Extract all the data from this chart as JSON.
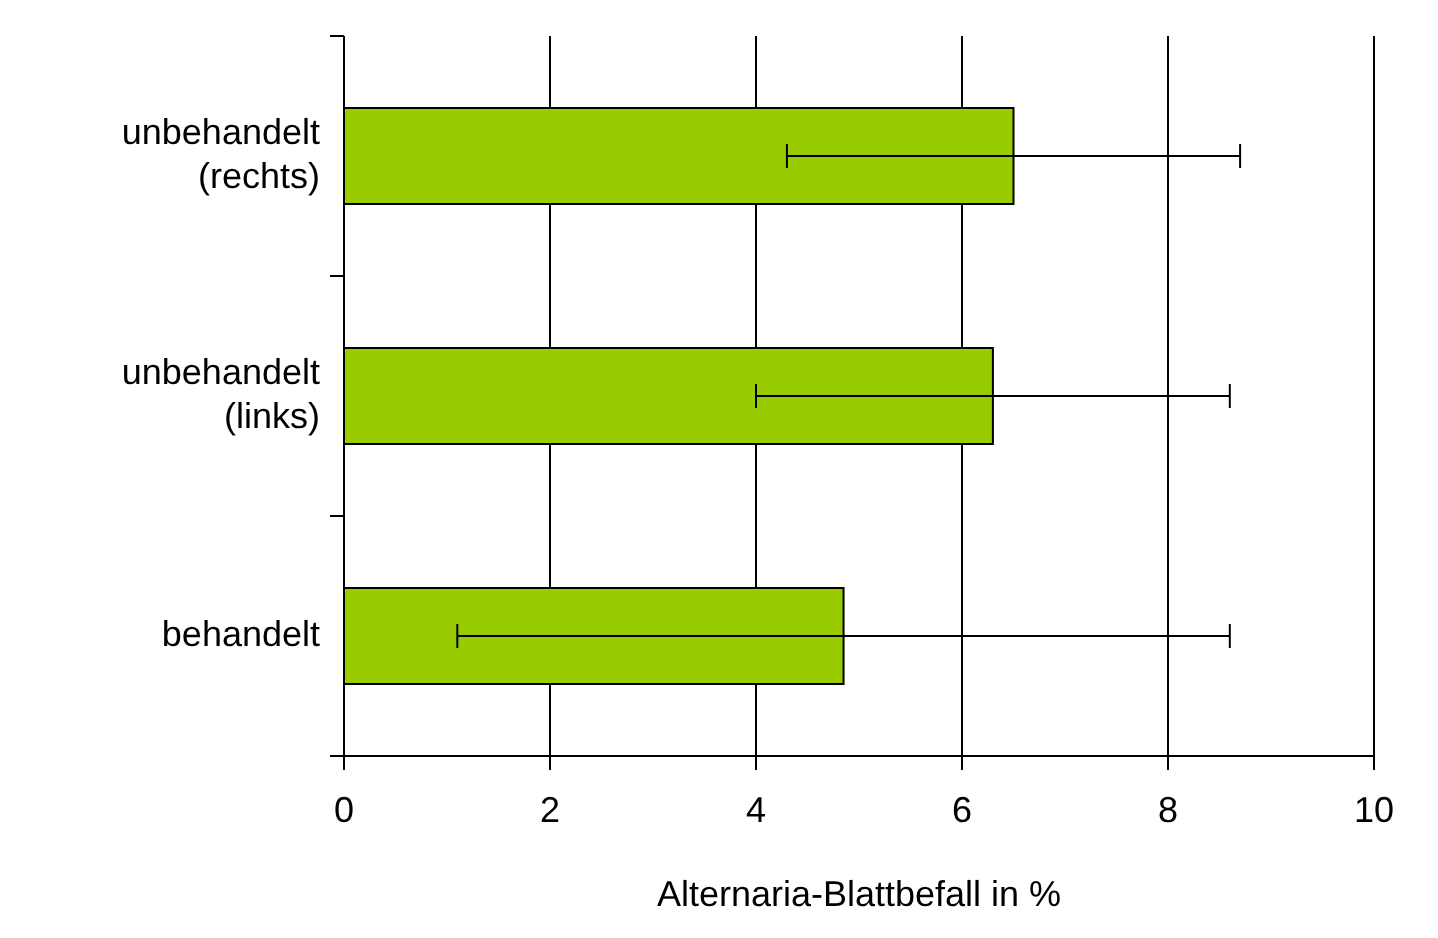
{
  "chart_data": {
    "type": "bar",
    "orientation": "horizontal",
    "categories": [
      "unbehandelt (rechts)",
      "unbehandelt (links)",
      "behandelt"
    ],
    "values": [
      6.5,
      6.3,
      4.85
    ],
    "errors": [
      [
        4.3,
        8.7
      ],
      [
        4.0,
        8.6
      ],
      [
        1.1,
        8.6
      ]
    ],
    "color": "#99cc00",
    "xlabel": "Alternaria-Blattbefall in %",
    "xlim": [
      0,
      10
    ],
    "xticks": [
      0,
      2,
      4,
      6,
      8,
      10
    ],
    "grid": "x"
  }
}
